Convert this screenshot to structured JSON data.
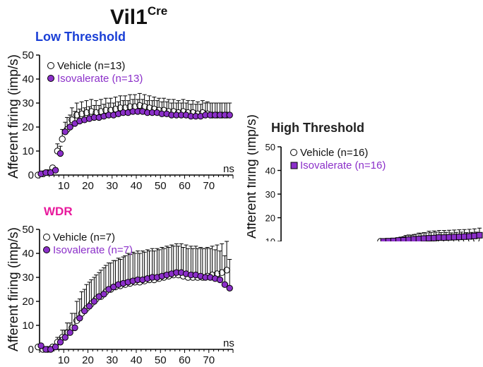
{
  "figure_title": "Vil1",
  "figure_title_sup": "Cre",
  "colors": {
    "vehicle": "#ffffff",
    "isovalerate": "#8b2fc9",
    "low_title": "#1a3fd6",
    "wdr_title": "#e8199c",
    "high_title": "#222222"
  },
  "chart_data": [
    {
      "id": "low",
      "type": "scatter",
      "title": "Low Threshold",
      "ylabel": "Afferent firing (imp/s)",
      "xlabel": "",
      "ylim": [
        0,
        50
      ],
      "xlim": [
        0,
        80
      ],
      "yticks": [
        0,
        10,
        20,
        30,
        40,
        50
      ],
      "xticks": [
        10,
        20,
        30,
        40,
        50,
        60,
        70
      ],
      "annotation": "ns",
      "legend": [
        "Vehicle (n=13)",
        "Isovalerate (n=13)"
      ],
      "x": [
        0,
        2,
        4,
        6,
        8,
        10,
        12,
        14,
        16,
        18,
        20,
        22,
        24,
        26,
        28,
        30,
        32,
        34,
        36,
        38,
        40,
        42,
        44,
        46,
        48,
        50,
        52,
        54,
        56,
        58,
        60,
        62,
        64,
        66,
        68,
        70,
        72,
        74,
        76,
        78
      ],
      "series": [
        {
          "name": "Vehicle (n=13)",
          "marker": "circle",
          "values": [
            0,
            0.5,
            1,
            3,
            10,
            15,
            19,
            23,
            25,
            25.5,
            26,
            26.5,
            26,
            26.5,
            27,
            27,
            27.5,
            28,
            28,
            28.5,
            28.5,
            29,
            28.5,
            28,
            27.5,
            27,
            27,
            26.5,
            26.5,
            26,
            26.5,
            26,
            26,
            25.5,
            26,
            25.5,
            25,
            25,
            25,
            25
          ],
          "errors": [
            0,
            0.5,
            0.5,
            1,
            3,
            4,
            5,
            5,
            5,
            5,
            5,
            5,
            5,
            5,
            5,
            5,
            5,
            5,
            5,
            5,
            5,
            5,
            5,
            5,
            5,
            5,
            5,
            5,
            5,
            5,
            5,
            5,
            5,
            5,
            5,
            5,
            5,
            5,
            5,
            5
          ]
        },
        {
          "name": "Isovalerate (n=13)",
          "marker": "circle",
          "values": [
            0.5,
            1,
            1,
            2,
            9,
            18,
            20,
            21.5,
            22.5,
            23,
            23.5,
            24,
            24,
            24.5,
            25,
            25,
            25.5,
            26,
            26,
            26.5,
            26.5,
            26.5,
            26,
            26,
            26,
            25.5,
            25.5,
            25,
            25,
            25,
            25,
            24.5,
            24.5,
            24.5,
            25,
            25,
            25,
            25,
            25,
            25
          ],
          "errors": [
            0.5,
            0.5,
            0.5,
            1,
            3,
            4,
            5,
            5,
            5,
            5,
            5,
            5,
            5,
            5,
            5,
            5,
            5,
            5,
            5,
            5,
            5,
            5,
            5,
            5,
            5,
            5,
            5,
            5,
            5,
            5,
            5,
            5,
            5,
            5,
            5,
            5,
            5,
            5,
            5,
            5
          ]
        }
      ]
    },
    {
      "id": "wdr",
      "type": "scatter",
      "title": "WDR",
      "ylabel": "Afferent firing (imp/s)",
      "xlabel": "",
      "ylim": [
        0,
        50
      ],
      "xlim": [
        0,
        80
      ],
      "yticks": [
        0,
        10,
        20,
        30,
        40,
        50
      ],
      "xticks": [
        10,
        20,
        30,
        40,
        50,
        60,
        70
      ],
      "annotation": "ns",
      "legend": [
        "Vehicle (n=7)",
        "Isovalerate (n=7)"
      ],
      "x": [
        0,
        2,
        4,
        6,
        8,
        10,
        12,
        14,
        16,
        18,
        20,
        22,
        24,
        26,
        28,
        30,
        32,
        34,
        36,
        38,
        40,
        42,
        44,
        46,
        48,
        50,
        52,
        54,
        56,
        58,
        60,
        62,
        64,
        66,
        68,
        70,
        72,
        74,
        76,
        78
      ],
      "series": [
        {
          "name": "Vehicle (n=7)",
          "marker": "circle",
          "values": [
            1,
            0,
            0,
            1,
            3,
            5,
            7,
            9,
            12,
            15,
            17,
            19,
            21,
            22,
            24,
            25,
            26,
            26.5,
            27,
            27.5,
            28,
            28,
            28.5,
            29,
            29,
            29.5,
            30,
            30.5,
            31,
            31,
            30.5,
            30,
            30,
            30,
            30,
            30.5,
            31,
            31.5,
            32,
            33
          ],
          "errors": [
            0.5,
            0.5,
            0.5,
            1,
            2,
            3,
            4,
            6,
            8,
            9,
            10,
            10,
            10,
            11,
            11,
            11,
            11,
            11,
            12,
            12,
            12,
            12,
            12,
            12,
            12,
            12,
            12,
            12,
            12,
            12,
            12,
            12,
            12,
            12,
            12,
            12,
            12,
            12,
            12,
            12
          ]
        },
        {
          "name": "Isovalerate (n=7)",
          "marker": "circle",
          "values": [
            1.5,
            0,
            0,
            1,
            3,
            5,
            7,
            9,
            13,
            16,
            18,
            20,
            22,
            23,
            25,
            26,
            27,
            27.5,
            28,
            28.5,
            29,
            29,
            29.5,
            30,
            30,
            30.5,
            31,
            31.5,
            32,
            32,
            31.5,
            31,
            31,
            30.5,
            30,
            30,
            29.5,
            29,
            27,
            25.5
          ],
          "errors": [
            0.5,
            0.5,
            0.5,
            1,
            2,
            3,
            4,
            6,
            8,
            9,
            10,
            10,
            10,
            11,
            11,
            11,
            11,
            11,
            12,
            12,
            12,
            12,
            12,
            12,
            12,
            12,
            12,
            12,
            12,
            12,
            12,
            12,
            12,
            12,
            12,
            12,
            12,
            12,
            12,
            12
          ]
        }
      ]
    },
    {
      "id": "high",
      "type": "scatter",
      "title": "High Threshold",
      "ylabel": "Afferent firing (imp/s)",
      "xlabel": "",
      "ylim": [
        10,
        50
      ],
      "xlim": [
        0,
        80
      ],
      "yticks": [
        10,
        20,
        30,
        40,
        50
      ],
      "annotation": "",
      "legend": [
        "Vehicle (n=16)",
        "Isovalerate (n=16)"
      ],
      "x": [
        40,
        42,
        44,
        46,
        48,
        50,
        52,
        54,
        56,
        58,
        60,
        62,
        64,
        66,
        68,
        70,
        72,
        74,
        76,
        78
      ],
      "series": [
        {
          "name": "Vehicle (n=16)",
          "marker": "circle",
          "values": [
            10,
            10,
            10,
            10.2,
            10.3,
            10.5,
            10.6,
            10.5,
            10.8,
            10.6,
            10.7,
            10.9,
            10.7,
            10.8,
            10.6,
            10.8,
            10.9,
            10.7,
            10.8,
            10.9
          ],
          "errors": [
            0.5,
            0.5,
            0.8,
            1,
            1.5,
            2,
            2,
            2.5,
            2.5,
            3,
            3,
            3,
            3,
            3,
            3,
            3,
            3,
            3,
            3,
            3
          ]
        },
        {
          "name": "Isovalerate (n=16)",
          "marker": "square",
          "values": [
            10,
            10.1,
            10.2,
            10.4,
            10.5,
            10.7,
            10.9,
            11,
            11.2,
            11.3,
            11.4,
            11.6,
            11.6,
            11.7,
            11.8,
            11.9,
            12,
            12.1,
            12.3,
            12.6
          ],
          "errors": [
            0.5,
            0.5,
            0.8,
            1,
            1.5,
            2,
            2,
            2.5,
            2.5,
            3,
            3,
            3,
            3,
            3,
            3,
            3,
            3,
            3,
            3,
            3
          ]
        }
      ]
    }
  ]
}
